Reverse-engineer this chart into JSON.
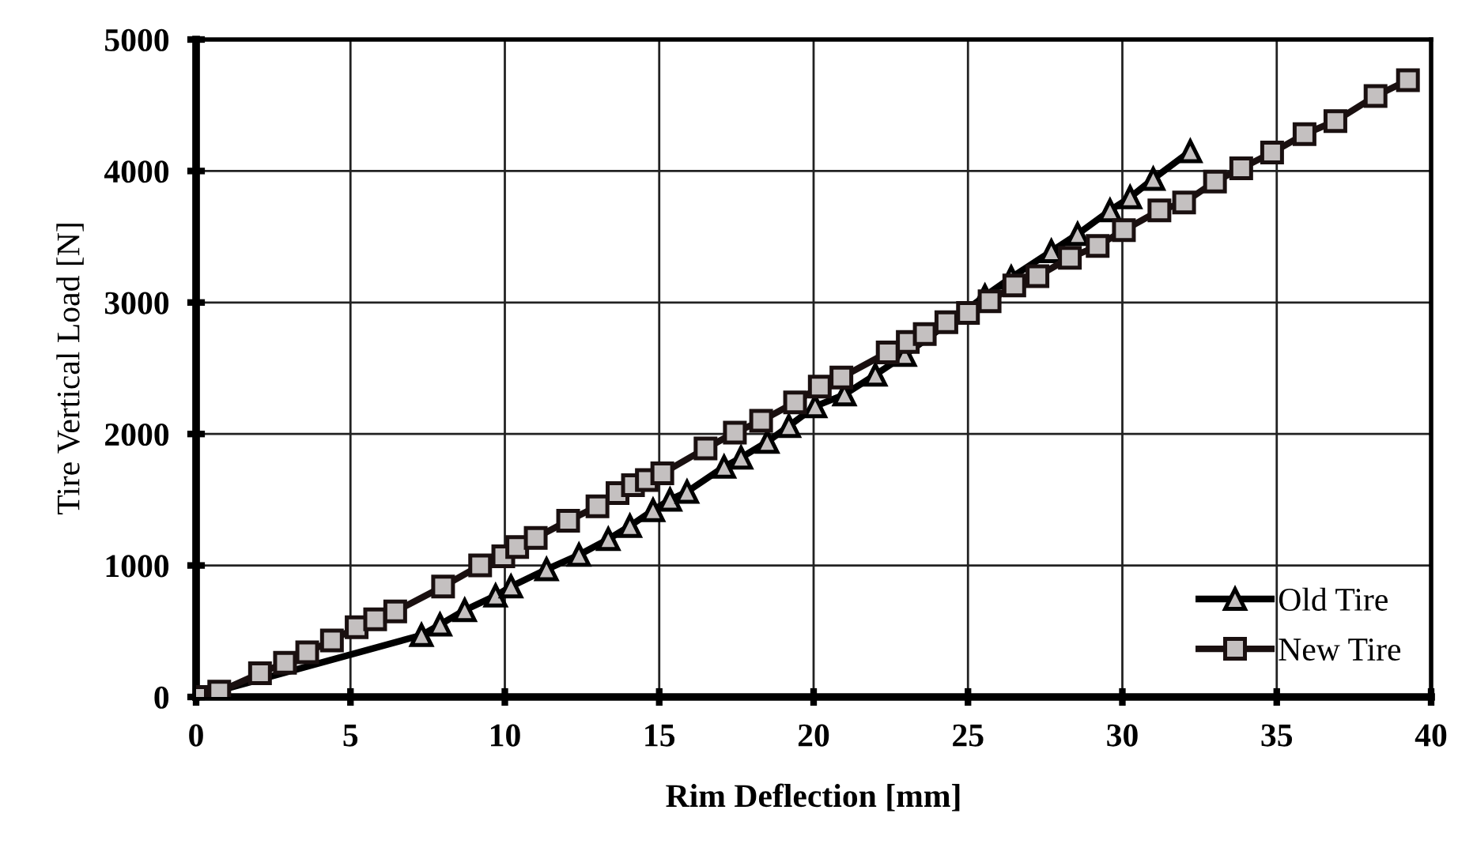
{
  "chart_data": {
    "type": "line",
    "xlabel": "Rim Deflection [mm]",
    "ylabel": "Tire Vertical Load [N]",
    "xlim": [
      0,
      40
    ],
    "xticks": [
      0,
      5,
      10,
      15,
      20,
      25,
      30,
      35,
      40
    ],
    "ylim": [
      0,
      5000
    ],
    "yticks": [
      0,
      1000,
      2000,
      3000,
      4000,
      5000
    ],
    "grid": true,
    "legend": "bottom right",
    "line_style": "solid",
    "series": [
      {
        "name": "Old Tire",
        "color": "#000000",
        "marker": "triangle",
        "x": [
          0,
          7.3,
          7.9,
          8.7,
          9.7,
          10.2,
          11.35,
          12.4,
          13.35,
          14.05,
          14.8,
          15.35,
          15.9,
          17.1,
          17.65,
          18.5,
          19.2,
          20.05,
          21.0,
          22.0,
          22.95,
          25.55,
          26.4,
          27.7,
          28.55,
          29.6,
          30.25,
          31.0,
          32.2
        ],
        "values": [
          0,
          470,
          550,
          660,
          770,
          840,
          970,
          1080,
          1200,
          1300,
          1420,
          1500,
          1560,
          1750,
          1820,
          1940,
          2060,
          2210,
          2300,
          2450,
          2600,
          3050,
          3190,
          3390,
          3520,
          3700,
          3800,
          3940,
          4150
        ]
      },
      {
        "name": "New Tire",
        "color": "#1a1010",
        "marker": "square",
        "x": [
          0,
          0.75,
          2.07,
          2.88,
          3.6,
          4.4,
          5.2,
          5.8,
          6.45,
          8.0,
          9.2,
          9.95,
          10.4,
          11.0,
          12.05,
          13.0,
          13.65,
          14.15,
          14.6,
          15.1,
          16.5,
          17.45,
          18.3,
          19.4,
          20.2,
          20.9,
          22.4,
          23.05,
          23.6,
          24.3,
          25.0,
          25.7,
          26.5,
          27.25,
          28.3,
          29.2,
          30.05,
          31.2,
          32.0,
          33.0,
          33.85,
          34.85,
          35.9,
          36.9,
          38.2,
          39.25
        ],
        "values": [
          0,
          40,
          180,
          260,
          340,
          430,
          530,
          590,
          650,
          840,
          1000,
          1070,
          1140,
          1210,
          1340,
          1450,
          1550,
          1610,
          1650,
          1700,
          1890,
          2010,
          2100,
          2240,
          2360,
          2430,
          2620,
          2700,
          2760,
          2850,
          2920,
          3010,
          3130,
          3200,
          3340,
          3430,
          3550,
          3700,
          3760,
          3920,
          4020,
          4140,
          4280,
          4380,
          4570,
          4690
        ]
      }
    ]
  }
}
